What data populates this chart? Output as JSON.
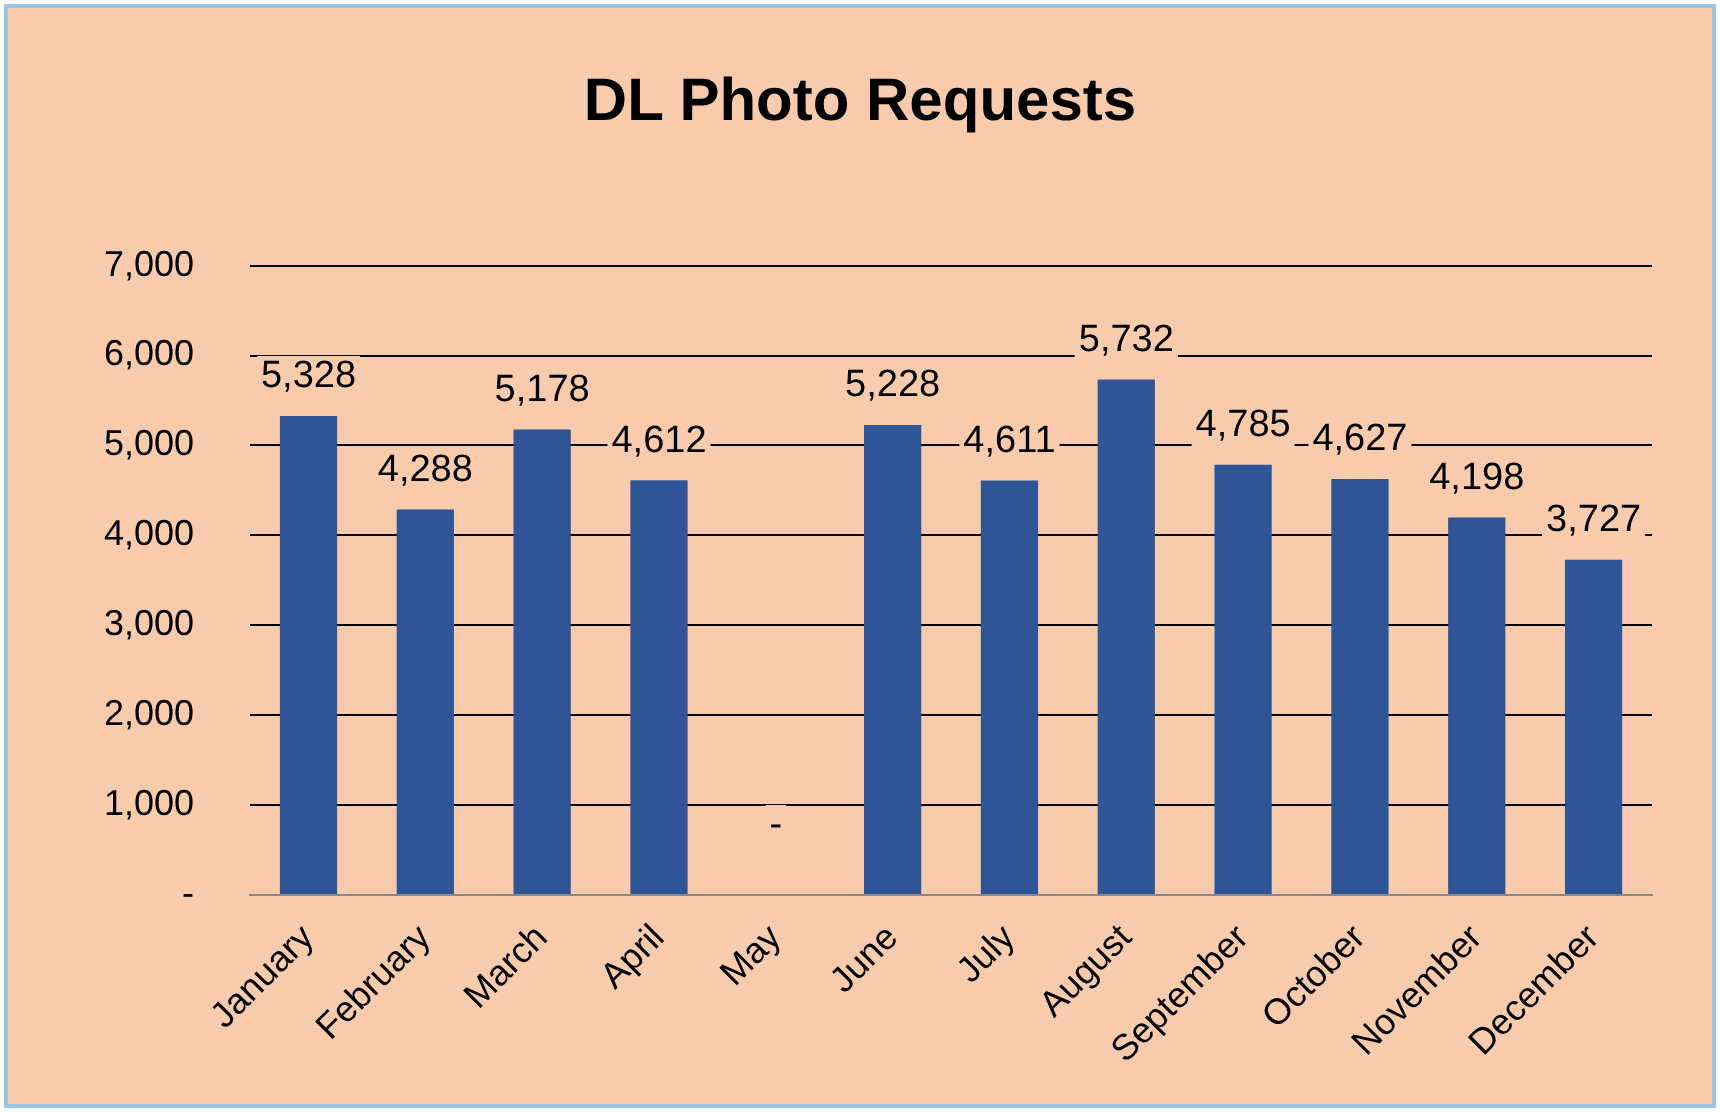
{
  "chart_data": {
    "type": "bar",
    "title": "DL Photo Requests",
    "categories": [
      "January",
      "February",
      "March",
      "April",
      "May",
      "June",
      "July",
      "August",
      "September",
      "October",
      "November",
      "December"
    ],
    "values": [
      5328,
      4288,
      5178,
      4612,
      0,
      5228,
      4611,
      5732,
      4785,
      4627,
      4198,
      3727
    ],
    "value_labels": [
      "5,328",
      "4,288",
      "5,178",
      "4,612",
      "-",
      "5,228",
      "4,611",
      "5,732",
      "4,785",
      "4,627",
      "4,198",
      "3,727"
    ],
    "color": "#2f5597",
    "ylim": [
      0,
      7000
    ],
    "yticks": [
      {
        "value": 0,
        "label": "-"
      },
      {
        "value": 1000,
        "label": "1,000"
      },
      {
        "value": 2000,
        "label": "2,000"
      },
      {
        "value": 3000,
        "label": "3,000"
      },
      {
        "value": 4000,
        "label": "4,000"
      },
      {
        "value": 5000,
        "label": "5,000"
      },
      {
        "value": 6000,
        "label": "6,000"
      },
      {
        "value": 7000,
        "label": "7,000"
      }
    ],
    "grid": "y",
    "legend": false
  }
}
